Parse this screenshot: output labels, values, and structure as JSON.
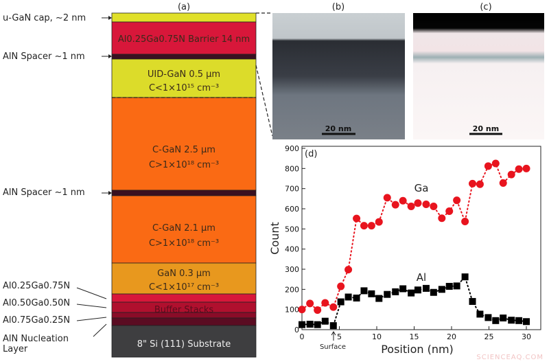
{
  "panels": {
    "a": "(a)",
    "b": "(b)",
    "c": "(c)",
    "d": "(d)"
  },
  "stack": {
    "left_labels": {
      "cap": "u-GaN cap, ~2 nm",
      "spacer1": "AlN Spacer ~1 nm",
      "spacer2": "AlN Spacer ~1 nm",
      "al25": "Al0.25Ga0.75N",
      "al50": "Al0.50Ga0.50N",
      "al75": "Al0.75Ga0.25N",
      "nucleation_1": "AlN Nucleation",
      "nucleation_2": "Layer"
    },
    "layers": {
      "barrier": "Al0.25Ga0.75N Barrier 14 nm",
      "uid_1": "UID-GaN 0.5 µm",
      "uid_2": "C<1×10¹⁵ cm⁻³",
      "cgan1_1": "C-GaN 2.5 µm",
      "cgan1_2": "C>1×10¹⁸ cm⁻³",
      "cgan2_1": "C-GaN 2.1 µm",
      "cgan2_2": "C>1×10¹⁸ cm⁻³",
      "gan_1": "GaN 0.3 µm",
      "gan_2": "C<1×10¹⁷ cm⁻³",
      "buffer": "Buffer Stacks",
      "substrate": "8\" Si (111) Substrate"
    },
    "colors": {
      "cap": "#e0e02a",
      "barrier": "#d8173a",
      "spacer": "#3a1020",
      "uid": "#dcdc2a",
      "cgan": "#fa6a14",
      "gan": "#e8981e",
      "substrate": "#3e3e40"
    }
  },
  "images": {
    "b_scale": "20 nm",
    "c_scale": "20 nm"
  },
  "chart_data": {
    "type": "scatter",
    "xlabel": "Position (nm)",
    "ylabel": "Count",
    "xlim": [
      0,
      32
    ],
    "ylim": [
      0,
      900
    ],
    "xticks": [
      0,
      5,
      10,
      15,
      20,
      25,
      30
    ],
    "yticks": [
      0,
      100,
      200,
      300,
      400,
      500,
      600,
      700,
      800,
      900
    ],
    "annotation": "Surface",
    "annotation_x": 4.2,
    "series": [
      {
        "name": "Ga",
        "color": "#e8141e",
        "marker": "circle",
        "x": [
          0,
          1.07,
          2.08,
          3.1,
          4.2,
          5.2,
          6.2,
          7.3,
          8.3,
          9.3,
          10.3,
          11.4,
          12.5,
          13.5,
          14.6,
          15.5,
          16.6,
          17.6,
          18.7,
          19.7,
          20.7,
          21.8,
          22.8,
          23.8,
          24.9,
          25.9,
          26.9,
          28,
          29,
          30
        ],
        "y": [
          100,
          130,
          97,
          133,
          112,
          215,
          298,
          552,
          516,
          516,
          535,
          655,
          620,
          640,
          612,
          628,
          622,
          612,
          553,
          588,
          642,
          537,
          725,
          722,
          812,
          825,
          728,
          770,
          797,
          800
        ]
      },
      {
        "name": "Al",
        "color": "#000000",
        "marker": "square",
        "x": [
          0,
          1.07,
          2.08,
          3.1,
          4.2,
          5.2,
          6.2,
          7.3,
          8.3,
          9.3,
          10.3,
          11.4,
          12.5,
          13.5,
          14.6,
          15.5,
          16.6,
          17.6,
          18.7,
          19.7,
          20.7,
          21.8,
          22.8,
          23.8,
          24.9,
          25.9,
          26.9,
          28,
          29,
          30
        ],
        "y": [
          25,
          27,
          25,
          42,
          20,
          138,
          162,
          157,
          193,
          178,
          155,
          175,
          188,
          203,
          182,
          197,
          205,
          185,
          200,
          215,
          217,
          262,
          140,
          77,
          60,
          45,
          58,
          47,
          45,
          40
        ]
      }
    ]
  },
  "watermark": "SCIENCEAQ.COM"
}
